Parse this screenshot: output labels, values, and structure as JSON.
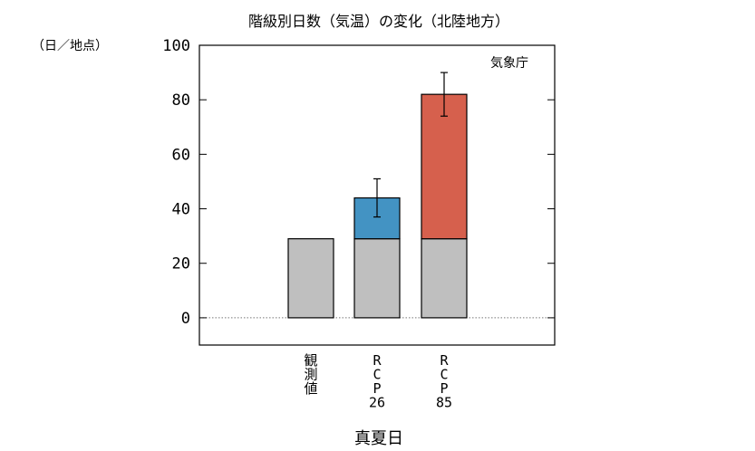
{
  "chart_data": {
    "type": "bar",
    "title": "階級別日数（気温）の変化（北陸地方）",
    "ylabel": "（日／地点）",
    "xlabel": "真夏日",
    "source_label": "気象庁",
    "ylim": [
      -10,
      100
    ],
    "yticks": [
      0,
      20,
      40,
      60,
      80,
      100
    ],
    "categories": [
      {
        "id": "obs",
        "lines": [
          "観",
          "測",
          "値"
        ]
      },
      {
        "id": "rcp26",
        "lines": [
          "R",
          "C",
          "P",
          "26"
        ]
      },
      {
        "id": "rcp85",
        "lines": [
          "R",
          "C",
          "P",
          "85"
        ]
      }
    ],
    "bars": [
      {
        "category": "obs",
        "base": 29,
        "increase": 0,
        "color": null,
        "error": null
      },
      {
        "category": "rcp26",
        "base": 29,
        "increase": 15,
        "color": "#4393c3",
        "error": [
          37,
          51
        ]
      },
      {
        "category": "rcp85",
        "base": 29,
        "increase": 53,
        "color": "#d6604d",
        "error": [
          74,
          90
        ]
      }
    ],
    "base_color": "#bfbfbf",
    "grid": false
  }
}
